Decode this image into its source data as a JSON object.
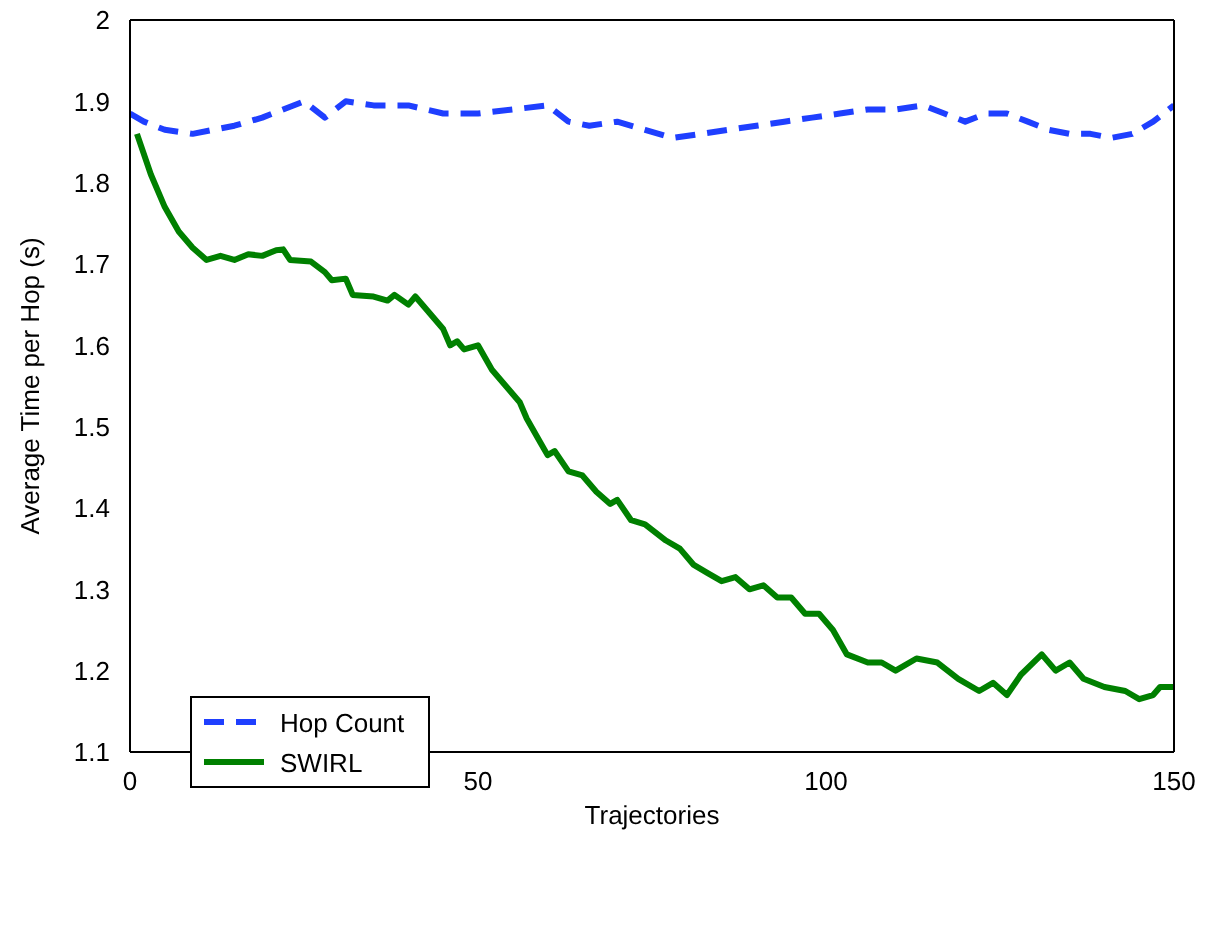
{
  "chart_data": {
    "type": "line",
    "xlabel": "Trajectories",
    "ylabel": "Average Time per Hop (s)",
    "xlim": [
      0,
      150
    ],
    "xticks": [
      0,
      50,
      100,
      150
    ],
    "ylim": [
      1.1,
      2
    ],
    "yticks": [
      1.1,
      1.2,
      1.3,
      1.4,
      1.5,
      1.6,
      1.7,
      1.8,
      1.9,
      2
    ],
    "grid": false,
    "legend": "bottom left",
    "marker": "none",
    "series": [
      {
        "name": "Hop Count",
        "color": "#1f3fff",
        "line_style": "dashed",
        "x": [
          0,
          2,
          5,
          9,
          12,
          15,
          19,
          22,
          25,
          28,
          31,
          35,
          40,
          45,
          50,
          55,
          60,
          63,
          66,
          70,
          74,
          78,
          82,
          86,
          90,
          94,
          98,
          102,
          106,
          110,
          114,
          117,
          120,
          123,
          126,
          129,
          132,
          135,
          138,
          141,
          144,
          147,
          150
        ],
        "values": [
          1.885,
          1.875,
          1.865,
          1.86,
          1.865,
          1.87,
          1.88,
          1.89,
          1.9,
          1.88,
          1.9,
          1.895,
          1.895,
          1.885,
          1.885,
          1.89,
          1.895,
          1.875,
          1.87,
          1.875,
          1.865,
          1.855,
          1.86,
          1.865,
          1.87,
          1.875,
          1.88,
          1.885,
          1.89,
          1.89,
          1.895,
          1.885,
          1.875,
          1.885,
          1.885,
          1.875,
          1.865,
          1.86,
          1.86,
          1.855,
          1.86,
          1.875,
          1.895
        ]
      },
      {
        "name": "SWIRL",
        "color": "#008000",
        "line_style": "solid",
        "x": [
          1,
          3,
          5,
          7,
          9,
          11,
          13,
          15,
          17,
          19,
          21,
          22,
          23,
          26,
          28,
          29,
          31,
          32,
          35,
          37,
          38,
          40,
          41,
          43,
          45,
          46,
          47,
          48,
          50,
          52,
          54,
          56,
          57,
          59,
          60,
          61,
          63,
          65,
          67,
          69,
          70,
          72,
          74,
          77,
          79,
          81,
          83,
          85,
          87,
          89,
          91,
          93,
          95,
          97,
          99,
          101,
          103,
          106,
          108,
          110,
          113,
          116,
          119,
          122,
          124,
          126,
          128,
          131,
          133,
          135,
          137,
          140,
          143,
          145,
          147,
          148,
          150
        ],
        "values": [
          1.86,
          1.81,
          1.77,
          1.74,
          1.72,
          1.705,
          1.71,
          1.705,
          1.712,
          1.71,
          1.717,
          1.718,
          1.705,
          1.703,
          1.69,
          1.68,
          1.682,
          1.662,
          1.66,
          1.655,
          1.662,
          1.65,
          1.66,
          1.64,
          1.62,
          1.6,
          1.605,
          1.595,
          1.6,
          1.57,
          1.55,
          1.53,
          1.51,
          1.48,
          1.465,
          1.47,
          1.445,
          1.44,
          1.42,
          1.405,
          1.41,
          1.385,
          1.38,
          1.36,
          1.35,
          1.33,
          1.32,
          1.31,
          1.315,
          1.3,
          1.305,
          1.29,
          1.29,
          1.27,
          1.27,
          1.25,
          1.22,
          1.21,
          1.21,
          1.2,
          1.215,
          1.21,
          1.19,
          1.175,
          1.185,
          1.17,
          1.195,
          1.22,
          1.2,
          1.21,
          1.19,
          1.18,
          1.175,
          1.165,
          1.17,
          1.18,
          1.18
        ]
      }
    ]
  }
}
